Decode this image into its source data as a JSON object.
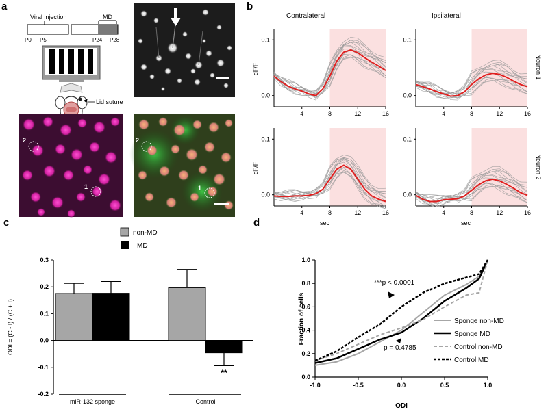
{
  "panel_labels": {
    "a": "a",
    "b": "b",
    "c": "c",
    "d": "d"
  },
  "panel_a": {
    "viral_injection": "Viral injection",
    "md": "MD",
    "timeline_ticks": [
      "P0",
      "P5",
      "P24",
      "P28"
    ],
    "lid_suture": "Lid suture",
    "roi_labels": [
      "2",
      "1"
    ]
  },
  "panel_b": {
    "column_titles": [
      "Contralateral",
      "Ipsilateral"
    ],
    "row_titles": [
      "Neuron 1",
      "Neuron 2"
    ],
    "ylabel": "dF/F",
    "xlabel": "sec",
    "x_ticks": [
      "4",
      "8",
      "12",
      "16"
    ],
    "y_ticks": [
      "0.0",
      "0.1"
    ]
  },
  "colors": {
    "mean_trace": "#e02020",
    "trial_trace": "#9a9a9a",
    "stim_shade": "#fbe0e0",
    "md_bar": "#000000",
    "nonmd_bar": "#a6a6a6"
  },
  "chart_data": [
    {
      "id": "b-contra-neuron1",
      "type": "line",
      "xlim": [
        0,
        16
      ],
      "ylim": [
        -0.02,
        0.12
      ],
      "shaded_x": [
        8,
        16
      ],
      "x": [
        0,
        1,
        2,
        3,
        4,
        5,
        6,
        7,
        8,
        9,
        10,
        11,
        12,
        13,
        14,
        15,
        16
      ],
      "series": [
        {
          "values": [
            0.035,
            0.025,
            0.017,
            0.012,
            0.008,
            0.003,
            0.0,
            0.012,
            0.035,
            0.062,
            0.078,
            0.082,
            0.077,
            0.068,
            0.06,
            0.053,
            0.045
          ]
        }
      ]
    },
    {
      "id": "b-ipsi-neuron1",
      "type": "line",
      "xlim": [
        0,
        16
      ],
      "ylim": [
        -0.02,
        0.12
      ],
      "shaded_x": [
        8,
        16
      ],
      "x": [
        0,
        1,
        2,
        3,
        4,
        5,
        6,
        7,
        8,
        9,
        10,
        11,
        12,
        13,
        14,
        15,
        16
      ],
      "series": [
        {
          "values": [
            0.02,
            0.016,
            0.012,
            0.007,
            0.003,
            -0.001,
            0.0,
            0.007,
            0.02,
            0.03,
            0.037,
            0.04,
            0.038,
            0.033,
            0.026,
            0.02,
            0.016
          ]
        }
      ]
    },
    {
      "id": "b-contra-neuron2",
      "type": "line",
      "xlim": [
        0,
        16
      ],
      "ylim": [
        -0.02,
        0.12
      ],
      "shaded_x": [
        8,
        16
      ],
      "x": [
        0,
        1,
        2,
        3,
        4,
        5,
        6,
        7,
        8,
        9,
        10,
        11,
        12,
        13,
        14,
        15,
        16
      ],
      "series": [
        {
          "values": [
            -0.002,
            -0.003,
            -0.003,
            -0.002,
            -0.002,
            -0.001,
            0.002,
            0.01,
            0.028,
            0.046,
            0.053,
            0.046,
            0.028,
            0.01,
            -0.002,
            -0.008,
            -0.012
          ]
        }
      ]
    },
    {
      "id": "b-ipsi-neuron2",
      "type": "line",
      "xlim": [
        0,
        16
      ],
      "ylim": [
        -0.02,
        0.12
      ],
      "shaded_x": [
        8,
        16
      ],
      "x": [
        0,
        1,
        2,
        3,
        4,
        5,
        6,
        7,
        8,
        9,
        10,
        11,
        12,
        13,
        14,
        15,
        16
      ],
      "series": [
        {
          "values": [
            -0.001,
            -0.008,
            -0.012,
            -0.012,
            -0.009,
            -0.008,
            -0.007,
            -0.002,
            0.008,
            0.018,
            0.025,
            0.028,
            0.025,
            0.019,
            0.012,
            0.004,
            -0.001
          ]
        }
      ]
    },
    {
      "id": "c-bar",
      "type": "bar",
      "ylabel": "ODI = (C - I) / (C + I)",
      "ylim": [
        -0.2,
        0.3
      ],
      "y_ticks": [
        "-0.2",
        "-0.1",
        "0.0",
        "0.1",
        "0.2",
        "0.3"
      ],
      "groups": [
        "miR-132 sponge",
        "Control"
      ],
      "series": [
        {
          "name": "non-MD",
          "values": [
            0.175,
            0.197
          ],
          "errors": [
            0.038,
            0.068
          ]
        },
        {
          "name": "MD",
          "values": [
            0.176,
            -0.046
          ],
          "errors": [
            0.044,
            0.048
          ]
        }
      ],
      "annotation": "**"
    },
    {
      "id": "d-cdf",
      "type": "line",
      "xlabel": "ODI",
      "ylabel": "Fraction of cells",
      "xlim": [
        -1.0,
        1.0
      ],
      "ylim": [
        0.0,
        1.0
      ],
      "x_ticks": [
        "-1.0",
        "-0.5",
        "0.0",
        "0.5",
        "1.0"
      ],
      "y_ticks": [
        "0.0",
        "0.2",
        "0.4",
        "0.6",
        "0.8",
        "1.0"
      ],
      "x": [
        -1.0,
        -0.75,
        -0.5,
        -0.25,
        0.0,
        0.25,
        0.5,
        0.75,
        0.9,
        1.0
      ],
      "series": [
        {
          "name": "Sponge non-MD",
          "style": "solid-gray",
          "values": [
            0.1,
            0.13,
            0.2,
            0.3,
            0.4,
            0.55,
            0.7,
            0.79,
            0.86,
            1.0
          ]
        },
        {
          "name": "Sponge MD",
          "style": "solid-black",
          "values": [
            0.12,
            0.16,
            0.24,
            0.32,
            0.38,
            0.5,
            0.65,
            0.76,
            0.84,
            1.0
          ]
        },
        {
          "name": "Control non-MD",
          "style": "dashed-gray",
          "values": [
            0.14,
            0.2,
            0.28,
            0.36,
            0.42,
            0.49,
            0.6,
            0.7,
            0.72,
            1.0
          ]
        },
        {
          "name": "Control MD",
          "style": "dashed-black",
          "values": [
            0.14,
            0.22,
            0.34,
            0.45,
            0.6,
            0.72,
            0.8,
            0.85,
            0.88,
            1.0
          ]
        }
      ],
      "annotations": [
        "***p < 0.0001",
        "p = 0.4785"
      ]
    }
  ]
}
